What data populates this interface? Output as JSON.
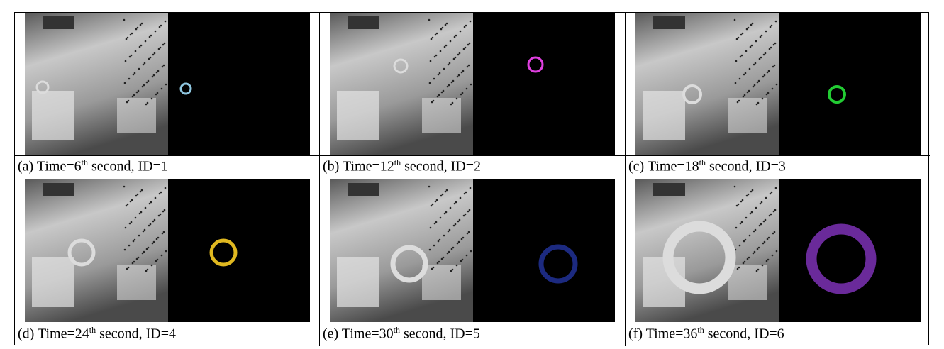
{
  "panels": [
    {
      "prefix": "(a) Time=6",
      "sup": "th",
      "suffix": " second, ID=1"
    },
    {
      "prefix": "(b) Time=12",
      "sup": "th",
      "suffix": " second, ID=2"
    },
    {
      "prefix": "(c) Time=18",
      "sup": "th",
      "suffix": " second, ID=3"
    },
    {
      "prefix": "(d) Time=24",
      "sup": "th",
      "suffix": " second, ID=4"
    },
    {
      "prefix": "(e) Time=30",
      "sup": "th",
      "suffix": " second, ID=5"
    },
    {
      "prefix": "(f) Time=36",
      "sup": "th",
      "suffix": " second, ID=6"
    }
  ]
}
